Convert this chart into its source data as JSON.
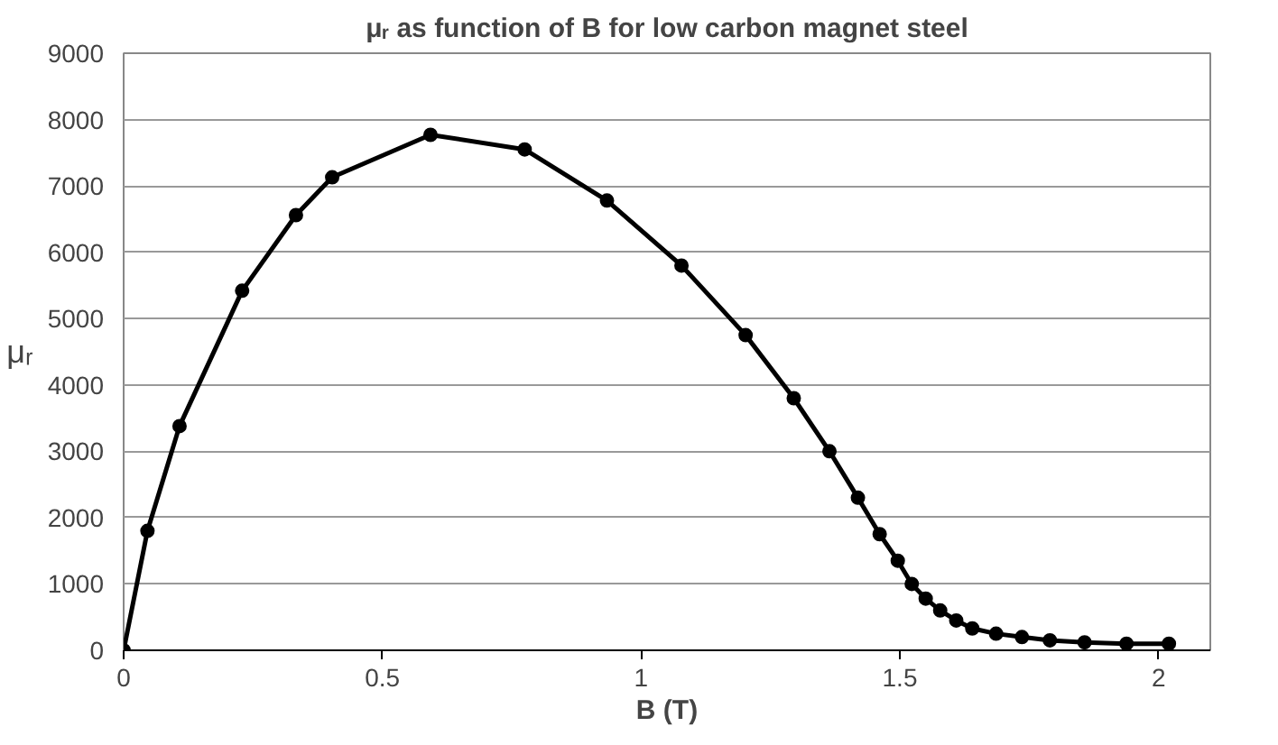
{
  "chart_data": {
    "type": "line",
    "title": "μᵣ as function of B for low carbon magnet steel",
    "xlabel": "B (T)",
    "ylabel": "μᵣ",
    "x": [
      0,
      0.046,
      0.108,
      0.229,
      0.333,
      0.403,
      0.593,
      0.775,
      0.934,
      1.078,
      1.202,
      1.295,
      1.364,
      1.419,
      1.461,
      1.496,
      1.523,
      1.55,
      1.578,
      1.609,
      1.64,
      1.686,
      1.736,
      1.79,
      1.857,
      1.938,
      2.02
    ],
    "series": [
      {
        "color": "#000000",
        "values": [
          0,
          1800,
          3380,
          5420,
          6560,
          7130,
          7770,
          7550,
          6780,
          5800,
          4750,
          3800,
          3000,
          2300,
          1750,
          1350,
          1000,
          780,
          600,
          450,
          330,
          250,
          200,
          150,
          120,
          100,
          100
        ]
      }
    ],
    "xlim": [
      0,
      2.1
    ],
    "xticks": [
      0,
      0.5,
      1,
      1.5,
      2
    ],
    "ylim": [
      0,
      9000
    ],
    "yticks": [
      0,
      1000,
      2000,
      3000,
      4000,
      5000,
      6000,
      7000,
      8000,
      9000
    ],
    "grid": "y",
    "marker": "circle",
    "line_style": "solid"
  }
}
